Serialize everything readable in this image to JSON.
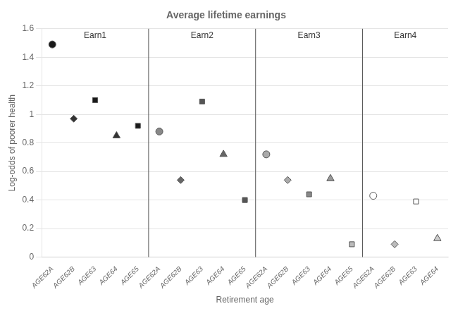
{
  "chart_data": {
    "type": "scatter",
    "title": "Average lifetime earnings",
    "x_label": "Retirement age",
    "y_label": "Log-odds of poorer health",
    "categories": [
      "AGE62A",
      "AGE62B",
      "AGE63",
      "AGE64",
      "AGE65",
      "AGE62A",
      "AGE62B",
      "AGE63",
      "AGE64",
      "AGE65",
      "AGE62A",
      "AGE62B",
      "AGE63",
      "AGE64",
      "AGE65",
      "AGE62A",
      "AGE62B",
      "AGE63",
      "AGE64"
    ],
    "series": [
      {
        "marker": "circle",
        "values": [
          1.49,
          null,
          null,
          null,
          null,
          0.88,
          null,
          null,
          null,
          null,
          0.72,
          null,
          null,
          null,
          null,
          0.43,
          null,
          null,
          null
        ],
        "colors": [
          "#1a1a1a",
          null,
          null,
          null,
          null,
          "#888888",
          null,
          null,
          null,
          null,
          "#aaaaaa",
          null,
          null,
          null,
          null,
          "#ffffff",
          null,
          null,
          null
        ]
      },
      {
        "marker": "diamond",
        "values": [
          null,
          0.97,
          null,
          null,
          null,
          null,
          0.54,
          null,
          null,
          null,
          null,
          0.54,
          null,
          null,
          null,
          null,
          0.09,
          null,
          null
        ],
        "colors": [
          null,
          "#333333",
          null,
          null,
          null,
          null,
          "#666666",
          null,
          null,
          null,
          null,
          "#aaaaaa",
          null,
          null,
          null,
          null,
          "#bbbbbb",
          null,
          null
        ]
      },
      {
        "marker": "square",
        "values": [
          null,
          null,
          1.1,
          null,
          null,
          null,
          null,
          1.09,
          null,
          null,
          null,
          null,
          0.44,
          null,
          null,
          null,
          null,
          0.39,
          null
        ],
        "colors": [
          null,
          null,
          "#1a1a1a",
          null,
          null,
          null,
          null,
          "#555555",
          null,
          null,
          null,
          null,
          "#888888",
          null,
          null,
          null,
          null,
          "#ffffff",
          null
        ]
      },
      {
        "marker": "triangle",
        "values": [
          null,
          null,
          null,
          0.85,
          null,
          null,
          null,
          null,
          0.72,
          null,
          null,
          null,
          null,
          0.55,
          null,
          null,
          null,
          null,
          0.13
        ],
        "colors": [
          null,
          null,
          null,
          "#333333",
          null,
          null,
          null,
          null,
          "#666666",
          null,
          null,
          null,
          null,
          "#999999",
          null,
          null,
          null,
          null,
          "#cccccc"
        ]
      },
      {
        "marker": "square",
        "values": [
          null,
          null,
          null,
          null,
          0.92,
          null,
          null,
          null,
          null,
          0.4,
          null,
          null,
          null,
          null,
          0.09,
          null,
          null,
          null,
          null
        ],
        "colors": [
          null,
          null,
          null,
          null,
          "#1a1a1a",
          null,
          null,
          null,
          null,
          "#555555",
          null,
          null,
          null,
          null,
          "#bbbbbb",
          null,
          null,
          null,
          null
        ]
      }
    ],
    "annotations": [
      "Earn1",
      "Earn2",
      "Earn3",
      "Earn4"
    ],
    "ylim": [
      0,
      1.6
    ],
    "yticks": [
      0,
      0.2,
      0.4,
      0.6,
      0.8,
      1,
      1.2,
      1.4,
      1.6
    ],
    "grid": "y"
  }
}
